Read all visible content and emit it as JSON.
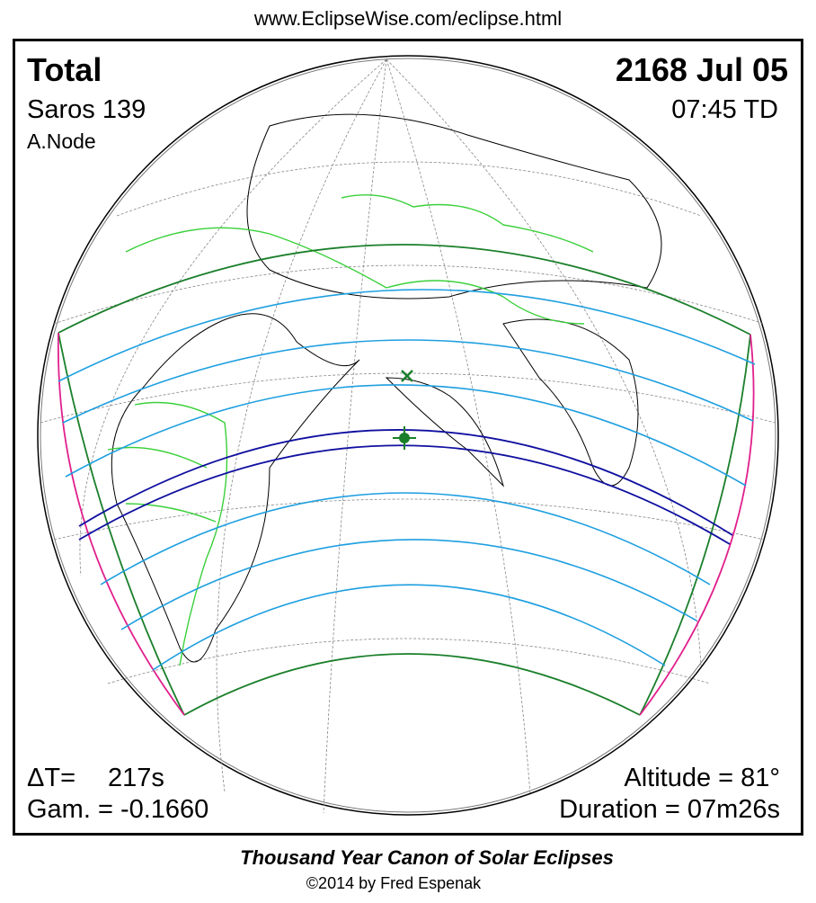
{
  "header": {
    "url": "www.EclipseWise.com/eclipse.html"
  },
  "eclipse": {
    "type": "Total",
    "date": "2168 Jul 05",
    "saros": "Saros 139",
    "time": "07:45 TD",
    "node": "A.Node",
    "delta_t_label": "ΔT=",
    "delta_t": "217s",
    "gamma": "Gam. = -0.1660",
    "altitude": "Altitude = 81°",
    "duration": "Duration = 07m26s"
  },
  "footer": {
    "title": "Thousand Year Canon of Solar Eclipses",
    "copyright": "©2014 by Fred Espenak"
  }
}
